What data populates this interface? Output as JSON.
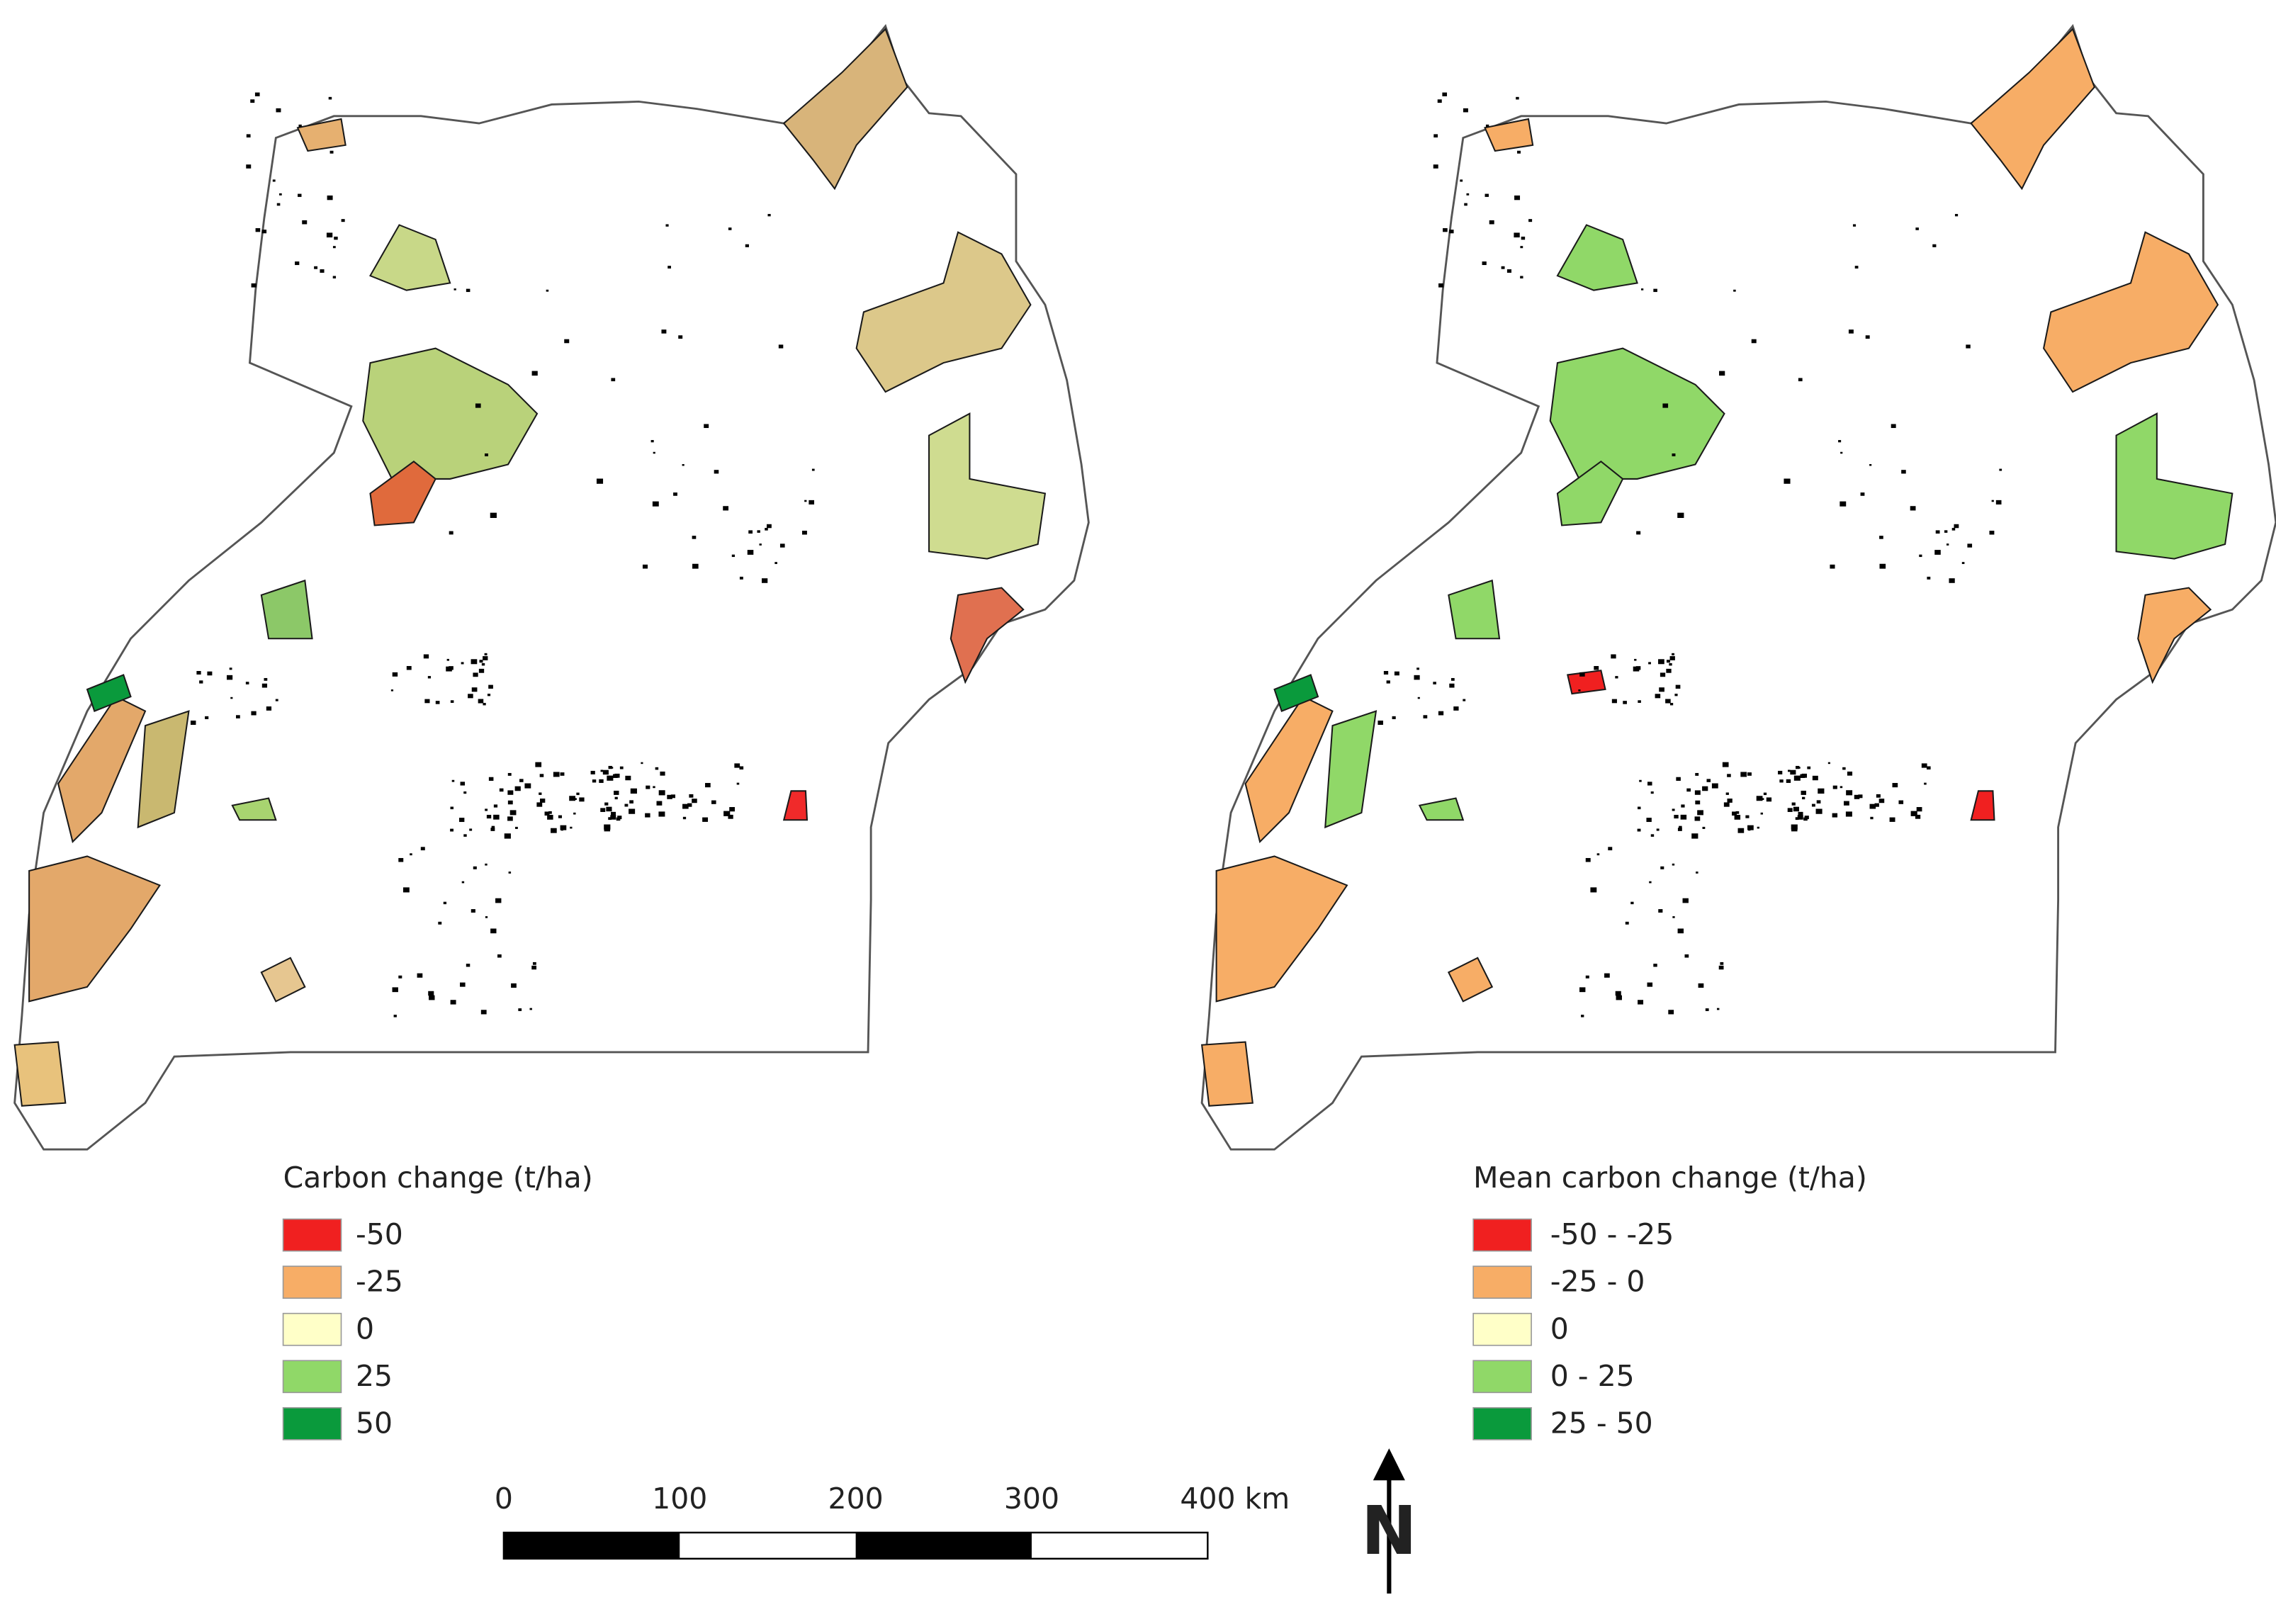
{
  "maps": [
    {
      "legend": {
        "title": "Carbon change (t/ha)",
        "items": [
          {
            "label": "-50",
            "color": "#f02020"
          },
          {
            "label": "-25",
            "color": "#f7ad66"
          },
          {
            "label": "0",
            "color": "#ffffc8"
          },
          {
            "label": "25",
            "color": "#90d868"
          },
          {
            "label": "50",
            "color": "#0a9a3c"
          }
        ]
      }
    },
    {
      "legend": {
        "title": "Mean carbon change (t/ha)",
        "items": [
          {
            "label": "-50 - -25",
            "color": "#f02020"
          },
          {
            "label": "-25 - 0",
            "color": "#f7ad66"
          },
          {
            "label": "0",
            "color": "#ffffc8"
          },
          {
            "label": "0 - 25",
            "color": "#90d868"
          },
          {
            "label": "25 - 50",
            "color": "#0a9a3c"
          }
        ]
      }
    }
  ],
  "scale_bar": {
    "labels": [
      "0",
      "100",
      "200",
      "300",
      "400 km"
    ]
  },
  "north_arrow": {
    "label": "N"
  }
}
